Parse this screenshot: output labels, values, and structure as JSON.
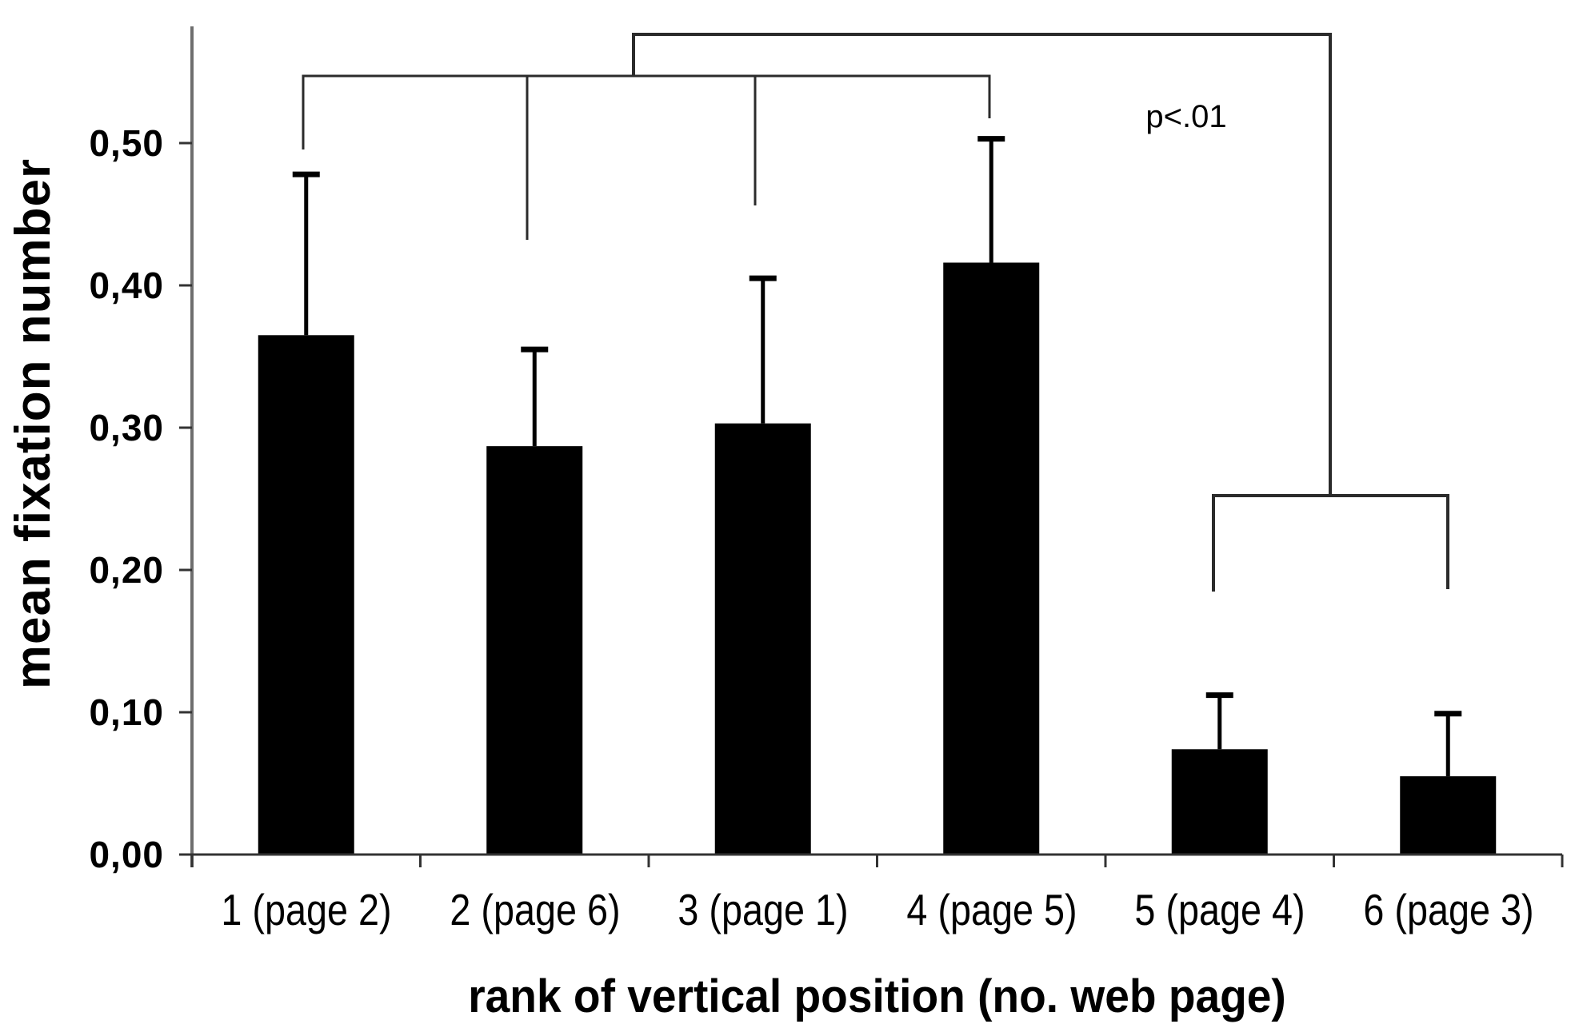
{
  "chart_data": {
    "type": "bar",
    "title": "",
    "xlabel": "rank of vertical position (no. web page)",
    "ylabel": "mean fixation number",
    "categories": [
      "1 (page 2)",
      "2 (page 6)",
      "3 (page 1)",
      "4 (page 5)",
      "5 (page 4)",
      "6 (page 3)"
    ],
    "values": [
      0.365,
      0.287,
      0.303,
      0.416,
      0.074,
      0.055
    ],
    "error_top_values": [
      0.478,
      0.355,
      0.405,
      0.503,
      0.112,
      0.099
    ],
    "error_bars": "upper whisker with cap only",
    "y_ticks": [
      "0,00",
      "0,10",
      "0,20",
      "0,30",
      "0,40",
      "0,50"
    ],
    "y_tick_values": [
      0.0,
      0.1,
      0.2,
      0.3,
      0.4,
      0.5
    ],
    "ylim": [
      0,
      0.582
    ],
    "decimal_separator": ",",
    "grid": "off",
    "legend": "none",
    "bar_color": "#000000",
    "background_color": "#ffffff",
    "annotation": "p<.01",
    "significance_comparisons": [
      {
        "group_a": "ranks 1-4",
        "group_b": "ranks 5-6",
        "p": "p<.01"
      }
    ]
  }
}
